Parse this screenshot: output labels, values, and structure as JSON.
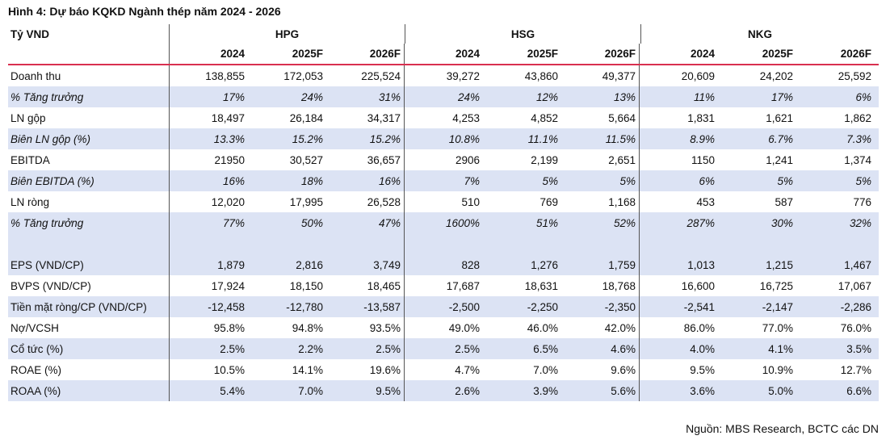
{
  "title": "Hình 4: Dự báo KQKD Ngành thép năm 2024 - 2026",
  "unit_label": "Tỷ VND",
  "groups": [
    "HPG",
    "HSG",
    "NKG"
  ],
  "years": [
    "2024",
    "2025F",
    "2026F",
    "2024",
    "2025F",
    "2026F",
    "2024",
    "2025F",
    "2026F"
  ],
  "rows": [
    {
      "label": "Doanh thu",
      "values": [
        "138,855",
        "172,053",
        "225,524",
        "39,272",
        "43,860",
        "49,377",
        "20,609",
        "24,202",
        "25,592"
      ]
    },
    {
      "label": "% Tăng trưởng",
      "values": [
        "17%",
        "24%",
        "31%",
        "24%",
        "12%",
        "13%",
        "11%",
        "17%",
        "6%"
      ]
    },
    {
      "label": "LN gộp",
      "values": [
        "18,497",
        "26,184",
        "34,317",
        "4,253",
        "4,852",
        "5,664",
        "1,831",
        "1,621",
        "1,862"
      ]
    },
    {
      "label": "Biên LN gộp (%)",
      "values": [
        "13.3%",
        "15.2%",
        "15.2%",
        "10.8%",
        "11.1%",
        "11.5%",
        "8.9%",
        "6.7%",
        "7.3%"
      ]
    },
    {
      "label": "EBITDA",
      "values": [
        "21950",
        "30,527",
        "36,657",
        "2906",
        "2,199",
        "2,651",
        "1150",
        "1,241",
        "1,374"
      ]
    },
    {
      "label": "Biên EBITDA (%)",
      "values": [
        "16%",
        "18%",
        "16%",
        "7%",
        "5%",
        "5%",
        "6%",
        "5%",
        "5%"
      ]
    },
    {
      "label": " LN ròng",
      "values": [
        "12,020",
        "17,995",
        "26,528",
        "510",
        "769",
        "1,168",
        "453",
        "587",
        "776"
      ]
    },
    {
      "label": "% Tăng trưởng",
      "values": [
        "77%",
        "50%",
        "47%",
        "1600%",
        "51%",
        "52%",
        "287%",
        "30%",
        "32%"
      ]
    },
    {
      "label": "",
      "values": [
        "",
        "",
        "",
        "",
        "",
        "",
        "",
        "",
        ""
      ]
    },
    {
      "label": "EPS (VND/CP)",
      "values": [
        "1,879",
        "2,816",
        "3,749",
        "828",
        "1,276",
        "1,759",
        "1,013",
        "1,215",
        "1,467"
      ]
    },
    {
      "label": "BVPS (VND/CP)",
      "values": [
        "17,924",
        "18,150",
        "18,465",
        "17,687",
        "18,631",
        "18,768",
        "16,600",
        "16,725",
        "17,067"
      ]
    },
    {
      "label": "Tiền mặt ròng/CP (VND/CP)",
      "values": [
        "-12,458",
        "-12,780",
        "-13,587",
        "-2,500",
        "-2,250",
        "-2,350",
        "-2,541",
        "-2,147",
        "-2,286"
      ]
    },
    {
      "label": "Nợ/VCSH",
      "values": [
        "95.8%",
        "94.8%",
        "93.5%",
        "49.0%",
        "46.0%",
        "42.0%",
        "86.0%",
        "77.0%",
        "76.0%"
      ]
    },
    {
      "label": "Cổ tức (%)",
      "values": [
        "2.5%",
        "2.2%",
        "2.5%",
        "2.5%",
        "6.5%",
        "4.6%",
        "4.0%",
        "4.1%",
        "3.5%"
      ]
    },
    {
      "label": "ROAE (%)",
      "values": [
        "10.5%",
        "14.1%",
        "19.6%",
        "4.7%",
        "7.0%",
        "9.6%",
        "9.5%",
        "10.9%",
        "12.7%"
      ]
    },
    {
      "label": "ROAA (%)",
      "values": [
        "5.4%",
        "7.0%",
        "9.5%",
        "2.6%",
        "3.9%",
        "5.6%",
        "3.6%",
        "5.0%",
        "6.6%"
      ]
    }
  ],
  "source": "Nguồn: MBS Research, BCTC các DN"
}
